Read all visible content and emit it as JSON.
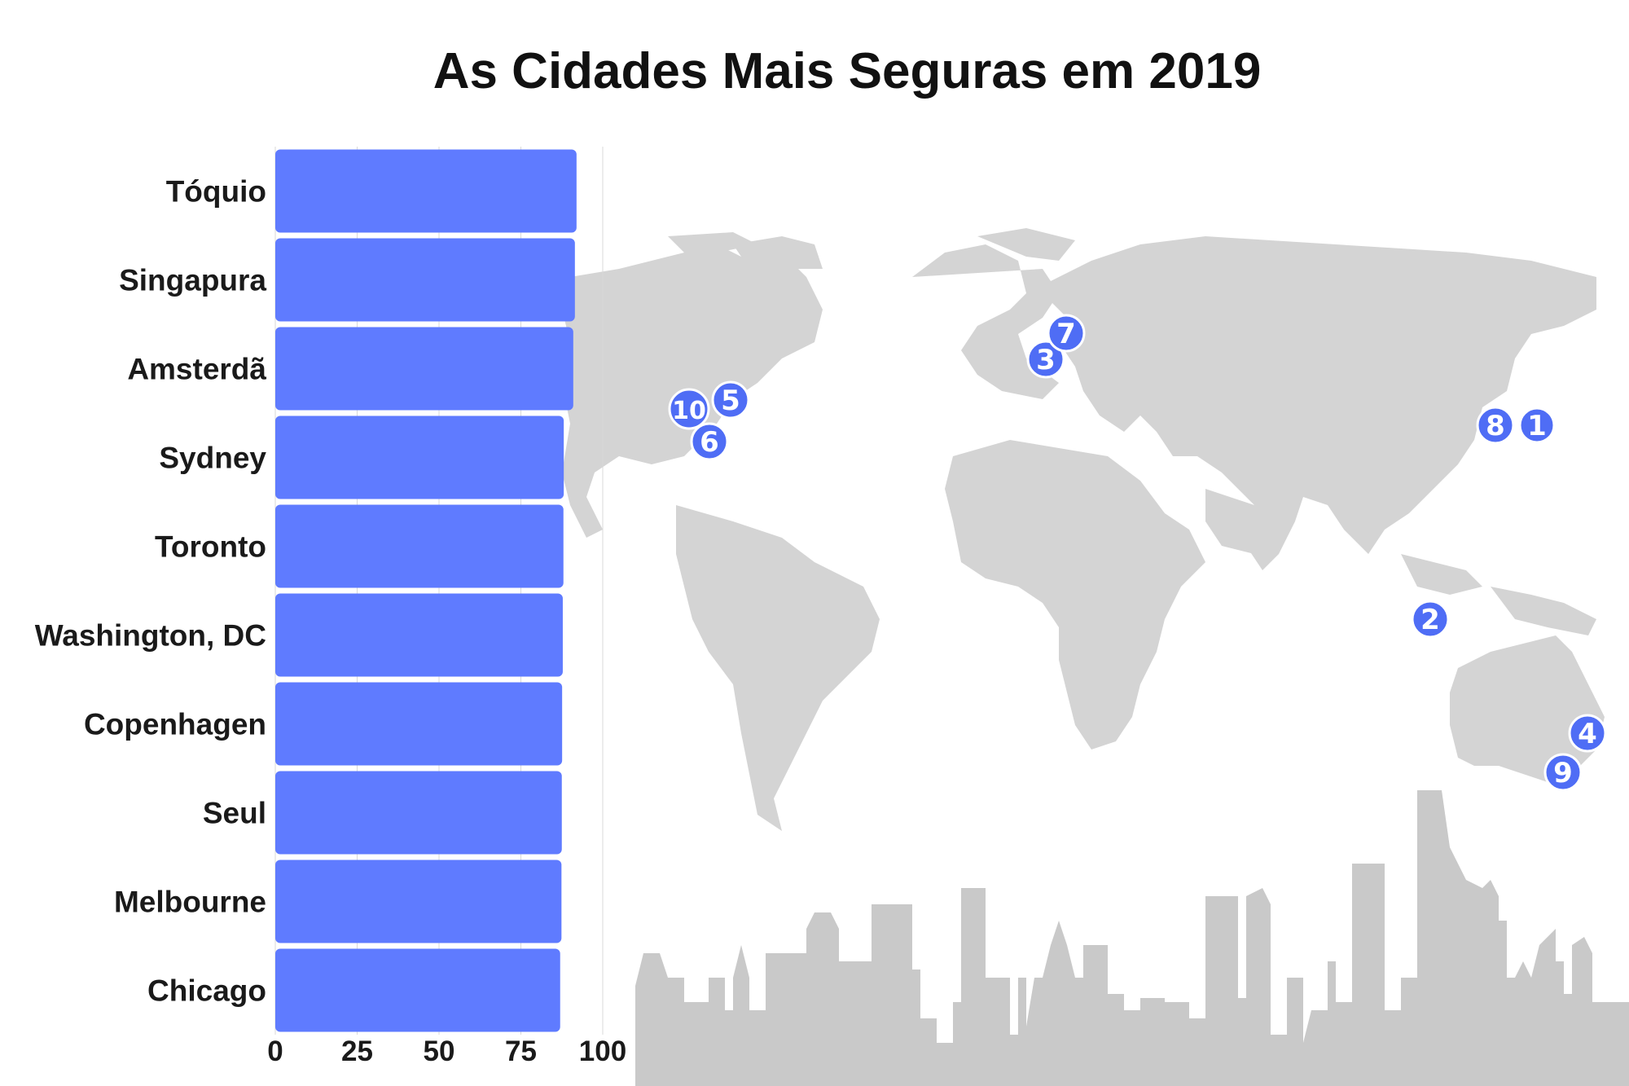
{
  "colors": {
    "bar": "#5f7bff",
    "map": "#d4d4d4",
    "skyline": "#c9c9c9",
    "marker": "#4f6df5",
    "gridline": "#d9d9d9"
  },
  "chart_data": {
    "type": "bar",
    "orientation": "horizontal",
    "title": "As Cidades Mais Seguras em 2019",
    "categories": [
      "Tóquio",
      "Singapura",
      "Amsterdã",
      "Sydney",
      "Toronto",
      "Washington, DC",
      "Copenhagen",
      "Seul",
      "Melbourne",
      "Chicago"
    ],
    "values": [
      92.0,
      91.5,
      91.0,
      88.1,
      88.0,
      87.8,
      87.6,
      87.5,
      87.4,
      87.0
    ],
    "xlim": [
      0,
      100
    ],
    "xticks": [
      "0",
      "25",
      "50",
      "75",
      "100"
    ],
    "grid": true,
    "map_markers": [
      "1",
      "2",
      "3",
      "4",
      "5",
      "6",
      "7",
      "8",
      "9",
      "10"
    ]
  }
}
